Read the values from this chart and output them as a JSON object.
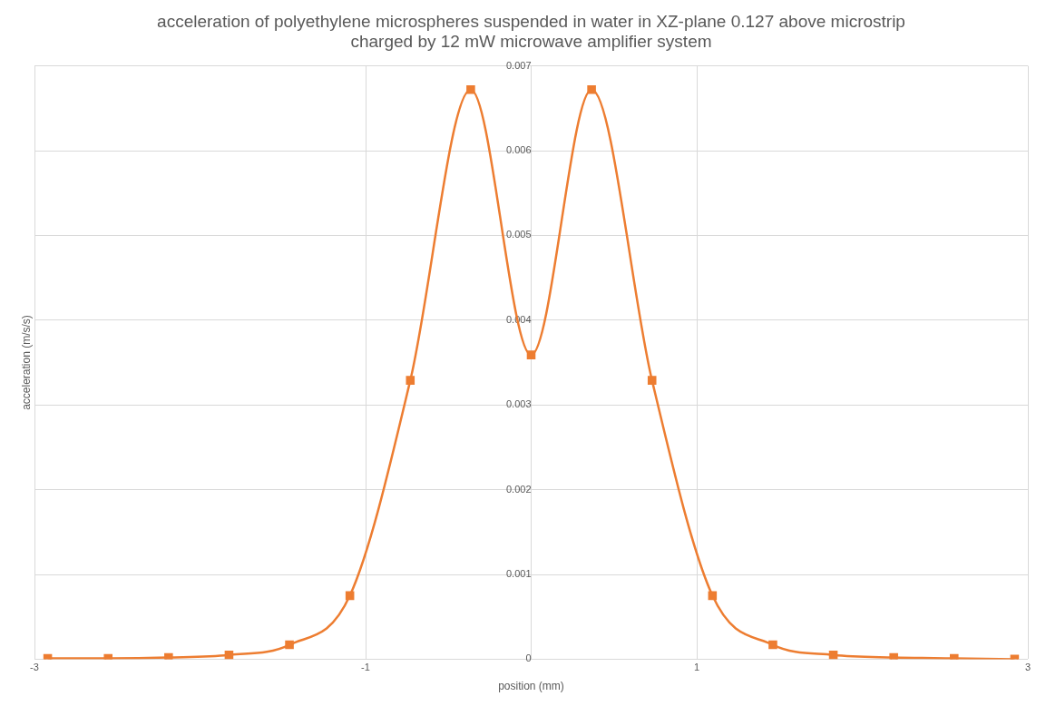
{
  "chart_data": {
    "type": "line",
    "title": "acceleration of polyethylene microspheres suspended in water in XZ-plane 0.127 above microstrip\ncharged by 12 mW microwave amplifier system",
    "xlabel": "position (mm)",
    "ylabel": "acceleration (m/s/s)",
    "x": [
      -2.92,
      -2.555,
      -2.19,
      -1.825,
      -1.46,
      -1.095,
      -0.73,
      -0.365,
      0,
      0.365,
      0.73,
      1.095,
      1.46,
      1.825,
      2.19,
      2.555,
      2.92
    ],
    "series": [
      {
        "color": "#ed7d31",
        "values": [
          1e-05,
          1e-05,
          2e-05,
          5e-05,
          0.00017,
          0.00075,
          0.00329,
          0.00672,
          0.00359,
          0.00672,
          0.00329,
          0.00075,
          0.00017,
          5e-05,
          2e-05,
          1e-05,
          0
        ]
      }
    ],
    "xlim": [
      -3,
      3
    ],
    "xticks": [
      -3,
      -1,
      1,
      3
    ],
    "ylim": [
      0,
      0.007
    ],
    "yticks": [
      0,
      0.001,
      0.002,
      0.003,
      0.004,
      0.005,
      0.006,
      0.007
    ],
    "grid": true,
    "legend": false,
    "marker": "square",
    "line_style": "solid"
  }
}
